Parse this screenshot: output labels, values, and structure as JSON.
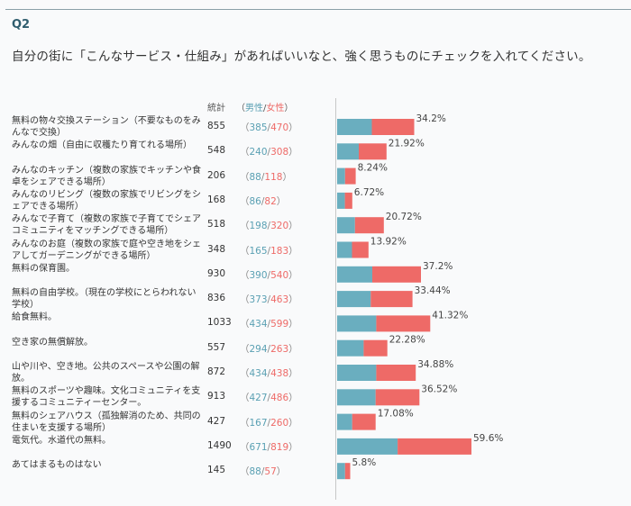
{
  "question": {
    "label": "Q2",
    "text": "自分の街に「こんなサービス・仕組み」があればいいなと、強く思うものにチェックを入れてください。"
  },
  "header": {
    "total_label": "統計",
    "open_paren": "（",
    "male_label": "男性",
    "slash": "/",
    "female_label": "女性",
    "close_paren": "）"
  },
  "colors": {
    "male": "#6aaebf",
    "female": "#ee6a67"
  },
  "chart_data": {
    "type": "bar",
    "stacked": true,
    "orientation": "horizontal",
    "categories": [
      "無料の物々交換ステーション（不要なものをみんなで交換）",
      "みんなの畑（自由に収穫たり育てれる場所）",
      "みんなのキッチン（複数の家族でキッチンや食卓をシェアできる場所）",
      "みんなのリビング（複数の家族でリビングをシェアできる場所）",
      "みんなで子育て（複数の家族で子育てでシェアコミュニティをマッチングできる場所）",
      "みんなのお庭（複数の家族で庭や空き地をシェアしてガーデニングができる場所）",
      "無料の保育園。",
      "無料の自由学校。（現在の学校にとらわれない学校）",
      "給食無料。",
      "空き家の無償解放。",
      "山や川や、空き地。公共のスペースや公園の解放。",
      "無料のスポーツや趣味。文化コミュニティを支援するコミュニティーセンター。",
      "無料のシェアハウス（孤独解消のため、共同の住まいを支援する場所）",
      "電気代。水道代の無料。",
      "あてはまるものはない"
    ],
    "totals": [
      855,
      548,
      206,
      168,
      518,
      348,
      930,
      836,
      1033,
      557,
      872,
      913,
      427,
      1490,
      145
    ],
    "series": [
      {
        "name": "男性",
        "values": [
          385,
          240,
          88,
          86,
          198,
          165,
          390,
          373,
          434,
          294,
          434,
          427,
          167,
          671,
          88
        ]
      },
      {
        "name": "女性",
        "values": [
          470,
          308,
          118,
          82,
          320,
          183,
          540,
          463,
          599,
          263,
          438,
          486,
          260,
          819,
          57
        ]
      }
    ],
    "percent_labels": [
      "34.2%",
      "21.92%",
      "8.24%",
      "6.72%",
      "20.72%",
      "13.92%",
      "37.2%",
      "33.44%",
      "41.32%",
      "22.28%",
      "34.88%",
      "36.52%",
      "17.08%",
      "59.6%",
      "5.8%"
    ]
  }
}
